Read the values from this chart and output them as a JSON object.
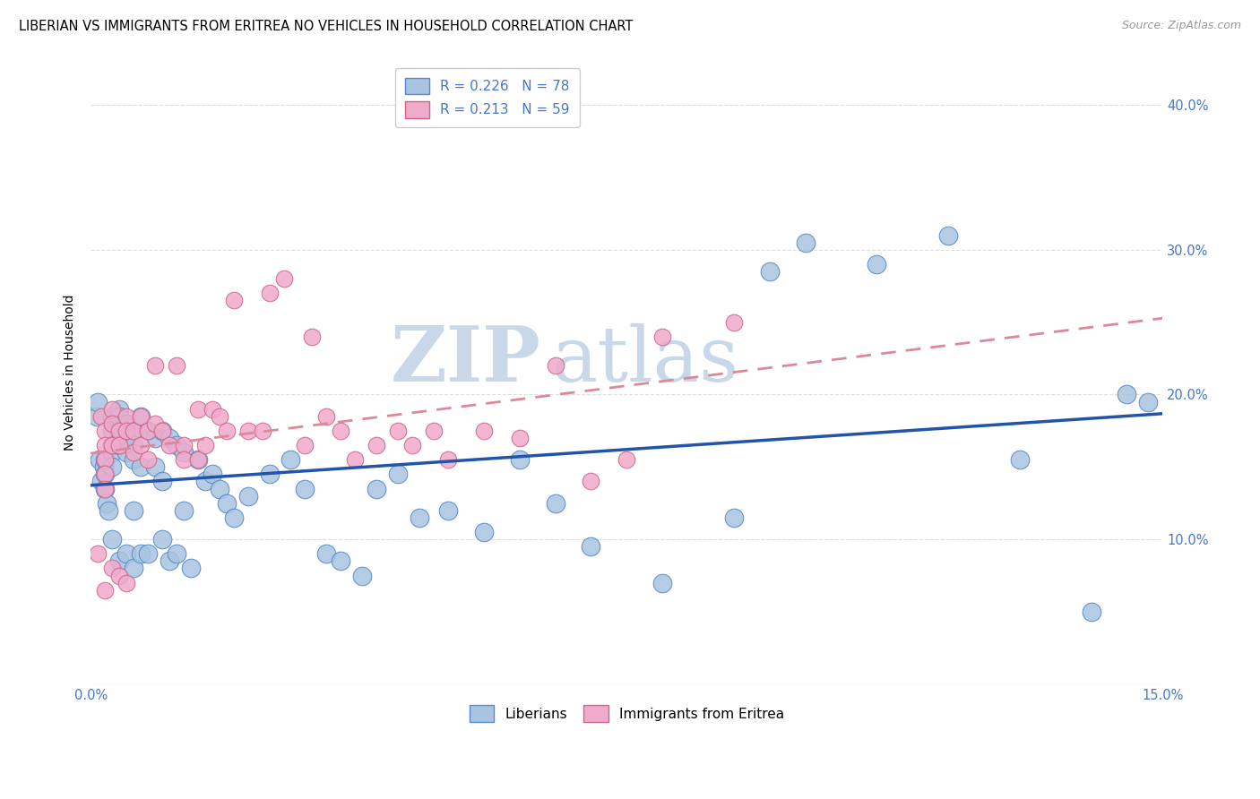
{
  "title": "LIBERIAN VS IMMIGRANTS FROM ERITREA NO VEHICLES IN HOUSEHOLD CORRELATION CHART",
  "source": "Source: ZipAtlas.com",
  "ylabel": "No Vehicles in Household",
  "ytick_vals": [
    0.1,
    0.2,
    0.3,
    0.4
  ],
  "ytick_labels": [
    "10.0%",
    "20.0%",
    "30.0%",
    "40.0%"
  ],
  "xmin": 0.0,
  "xmax": 0.15,
  "ymin": 0.0,
  "ymax": 0.43,
  "R_blue": 0.226,
  "N_blue": 78,
  "R_pink": 0.213,
  "N_pink": 59,
  "legend_label_blue": "Liberians",
  "legend_label_pink": "Immigrants from Eritrea",
  "blue_scatter_color": "#A8C4E0",
  "blue_scatter_edge": "#5588CC",
  "pink_scatter_color": "#F0AACC",
  "pink_scatter_edge": "#CC6688",
  "blue_line_color": "#2255AA",
  "pink_line_color": "#DD8899",
  "title_fontsize": 10.5,
  "source_fontsize": 9,
  "watermark_text1": "ZIP",
  "watermark_text2": "atlas",
  "watermark_color": "#C8D8E8",
  "grid_color": "#DDDDDD",
  "blue_x": [
    0.0008,
    0.001,
    0.0012,
    0.0015,
    0.0018,
    0.002,
    0.002,
    0.002,
    0.0022,
    0.0025,
    0.003,
    0.003,
    0.003,
    0.003,
    0.003,
    0.003,
    0.004,
    0.004,
    0.004,
    0.004,
    0.004,
    0.005,
    0.005,
    0.005,
    0.005,
    0.006,
    0.006,
    0.006,
    0.006,
    0.006,
    0.007,
    0.007,
    0.007,
    0.008,
    0.008,
    0.009,
    0.009,
    0.01,
    0.01,
    0.01,
    0.011,
    0.011,
    0.012,
    0.012,
    0.013,
    0.013,
    0.014,
    0.015,
    0.016,
    0.017,
    0.018,
    0.019,
    0.02,
    0.022,
    0.025,
    0.028,
    0.03,
    0.033,
    0.035,
    0.038,
    0.04,
    0.043,
    0.046,
    0.05,
    0.055,
    0.06,
    0.065,
    0.07,
    0.08,
    0.09,
    0.095,
    0.1,
    0.11,
    0.12,
    0.13,
    0.14,
    0.145,
    0.148
  ],
  "blue_y": [
    0.185,
    0.195,
    0.155,
    0.14,
    0.15,
    0.155,
    0.145,
    0.135,
    0.125,
    0.12,
    0.185,
    0.175,
    0.165,
    0.16,
    0.15,
    0.1,
    0.19,
    0.185,
    0.175,
    0.165,
    0.085,
    0.18,
    0.17,
    0.16,
    0.09,
    0.175,
    0.165,
    0.155,
    0.12,
    0.08,
    0.185,
    0.15,
    0.09,
    0.175,
    0.09,
    0.17,
    0.15,
    0.175,
    0.14,
    0.1,
    0.17,
    0.085,
    0.165,
    0.09,
    0.16,
    0.12,
    0.08,
    0.155,
    0.14,
    0.145,
    0.135,
    0.125,
    0.115,
    0.13,
    0.145,
    0.155,
    0.135,
    0.09,
    0.085,
    0.075,
    0.135,
    0.145,
    0.115,
    0.12,
    0.105,
    0.155,
    0.125,
    0.095,
    0.07,
    0.115,
    0.285,
    0.305,
    0.29,
    0.31,
    0.155,
    0.05,
    0.2,
    0.195
  ],
  "pink_x": [
    0.001,
    0.0015,
    0.002,
    0.002,
    0.002,
    0.002,
    0.002,
    0.002,
    0.003,
    0.003,
    0.003,
    0.003,
    0.004,
    0.004,
    0.004,
    0.005,
    0.005,
    0.005,
    0.006,
    0.006,
    0.007,
    0.007,
    0.008,
    0.008,
    0.009,
    0.009,
    0.01,
    0.011,
    0.012,
    0.013,
    0.013,
    0.015,
    0.015,
    0.016,
    0.017,
    0.018,
    0.019,
    0.02,
    0.022,
    0.024,
    0.025,
    0.027,
    0.03,
    0.031,
    0.033,
    0.035,
    0.037,
    0.04,
    0.043,
    0.045,
    0.048,
    0.05,
    0.055,
    0.06,
    0.065,
    0.07,
    0.075,
    0.08,
    0.09
  ],
  "pink_y": [
    0.09,
    0.185,
    0.175,
    0.165,
    0.155,
    0.145,
    0.135,
    0.065,
    0.19,
    0.18,
    0.165,
    0.08,
    0.175,
    0.165,
    0.075,
    0.185,
    0.175,
    0.07,
    0.175,
    0.16,
    0.185,
    0.165,
    0.175,
    0.155,
    0.22,
    0.18,
    0.175,
    0.165,
    0.22,
    0.165,
    0.155,
    0.19,
    0.155,
    0.165,
    0.19,
    0.185,
    0.175,
    0.265,
    0.175,
    0.175,
    0.27,
    0.28,
    0.165,
    0.24,
    0.185,
    0.175,
    0.155,
    0.165,
    0.175,
    0.165,
    0.175,
    0.155,
    0.175,
    0.17,
    0.22,
    0.14,
    0.155,
    0.24,
    0.25
  ]
}
